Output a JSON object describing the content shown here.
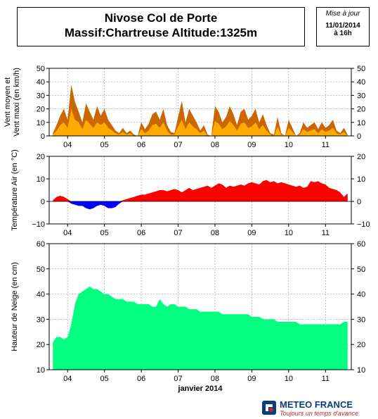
{
  "header": {
    "title_line1": "Nivose Col de Porte",
    "title_line2": "Massif:Chartreuse Altitude:1325m",
    "update_label": "Mise à jour",
    "update_date": "11/01/2014",
    "update_time": "à 16h"
  },
  "footer": {
    "brand": "METEO FRANCE",
    "slogan": "Toujours un temps d'avance",
    "xlabel": "janvier 2014"
  },
  "colors": {
    "wind_max": "#cc6600",
    "wind_mean": "#ffaa00",
    "temp_pos": "#ff0000",
    "temp_neg": "#0000ff",
    "snow": "#00ff80",
    "grid": "#999999"
  },
  "chart_data": [
    {
      "type": "area",
      "ylabel": "Vent moyen et Vent maxi (en km/h)",
      "ylim": [
        0,
        50
      ],
      "yticks": [
        0,
        10,
        20,
        30,
        40,
        50
      ],
      "xticks": [
        "04",
        "05",
        "06",
        "07",
        "08",
        "09",
        "10",
        "11"
      ],
      "x": [
        3.6,
        3.7,
        3.8,
        3.9,
        4.0,
        4.1,
        4.2,
        4.3,
        4.4,
        4.5,
        4.6,
        4.7,
        4.8,
        4.9,
        5.0,
        5.1,
        5.2,
        5.3,
        5.4,
        5.5,
        5.6,
        5.7,
        5.8,
        5.9,
        6.0,
        6.1,
        6.2,
        6.3,
        6.4,
        6.5,
        6.6,
        6.7,
        6.8,
        6.9,
        7.0,
        7.1,
        7.2,
        7.3,
        7.4,
        7.5,
        7.6,
        7.7,
        7.8,
        7.9,
        8.0,
        8.1,
        8.2,
        8.3,
        8.4,
        8.5,
        8.6,
        8.7,
        8.8,
        8.9,
        9.0,
        9.1,
        9.2,
        9.3,
        9.4,
        9.5,
        9.6,
        9.7,
        9.8,
        9.9,
        10.0,
        10.1,
        10.2,
        10.3,
        10.4,
        10.5,
        10.6,
        10.7,
        10.8,
        10.9,
        11.0,
        11.1,
        11.2,
        11.3,
        11.4,
        11.5,
        11.6
      ],
      "series": [
        {
          "name": "Vent maxi",
          "values": [
            2,
            8,
            15,
            20,
            12,
            38,
            25,
            18,
            10,
            24,
            18,
            12,
            22,
            15,
            20,
            12,
            8,
            4,
            2,
            6,
            2,
            4,
            1,
            0,
            10,
            5,
            9,
            16,
            18,
            12,
            20,
            8,
            3,
            2,
            14,
            26,
            10,
            20,
            15,
            10,
            4,
            8,
            1,
            0,
            22,
            18,
            10,
            14,
            22,
            16,
            8,
            18,
            20,
            12,
            15,
            20,
            10,
            16,
            8,
            2,
            1,
            14,
            2,
            0,
            12,
            6,
            0,
            2,
            10,
            6,
            8,
            10,
            5,
            10,
            6,
            8,
            12,
            4,
            2,
            6,
            1
          ]
        },
        {
          "name": "Vent moyen",
          "values": [
            1,
            4,
            8,
            10,
            6,
            20,
            12,
            10,
            5,
            12,
            9,
            6,
            10,
            8,
            10,
            6,
            4,
            2,
            1,
            3,
            1,
            2,
            0,
            0,
            5,
            2,
            4,
            8,
            9,
            6,
            10,
            4,
            1,
            1,
            7,
            12,
            5,
            10,
            7,
            5,
            2,
            4,
            0,
            0,
            11,
            9,
            5,
            7,
            11,
            8,
            4,
            9,
            10,
            6,
            7,
            10,
            5,
            8,
            4,
            1,
            0,
            7,
            1,
            0,
            6,
            3,
            0,
            1,
            5,
            3,
            4,
            5,
            2,
            5,
            3,
            4,
            6,
            2,
            1,
            3,
            0
          ]
        }
      ]
    },
    {
      "type": "area",
      "ylabel": "Température Air (en °C)",
      "ylim": [
        -10,
        20
      ],
      "yticks": [
        -10,
        0,
        10,
        20
      ],
      "xticks": [
        "04",
        "05",
        "06",
        "07",
        "08",
        "09",
        "10",
        "11"
      ],
      "x": [
        3.6,
        3.7,
        3.8,
        3.9,
        4.0,
        4.1,
        4.2,
        4.3,
        4.4,
        4.5,
        4.6,
        4.7,
        4.8,
        4.9,
        5.0,
        5.1,
        5.2,
        5.3,
        5.4,
        5.5,
        5.6,
        5.7,
        5.8,
        5.9,
        6.0,
        6.1,
        6.2,
        6.3,
        6.4,
        6.5,
        6.6,
        6.7,
        6.8,
        6.9,
        7.0,
        7.1,
        7.2,
        7.3,
        7.4,
        7.5,
        7.6,
        7.7,
        7.8,
        7.9,
        8.0,
        8.1,
        8.2,
        8.3,
        8.4,
        8.5,
        8.6,
        8.7,
        8.8,
        8.9,
        9.0,
        9.1,
        9.2,
        9.3,
        9.4,
        9.5,
        9.6,
        9.7,
        9.8,
        9.9,
        10.0,
        10.1,
        10.2,
        10.3,
        10.4,
        10.5,
        10.6,
        10.7,
        10.8,
        10.9,
        11.0,
        11.1,
        11.2,
        11.3,
        11.4,
        11.5,
        11.6
      ],
      "series": [
        {
          "name": "Température",
          "values": [
            0.5,
            2,
            2.5,
            2,
            1,
            -1,
            -1.5,
            -2,
            -2,
            -3,
            -3.5,
            -3,
            -2,
            -1.5,
            -2,
            -3,
            -3,
            -2.5,
            -1,
            0.5,
            1,
            1.5,
            2,
            2.5,
            3,
            3,
            3.5,
            4,
            4.5,
            5,
            5,
            4.5,
            5,
            5.5,
            5,
            4,
            5,
            6,
            5,
            5.5,
            6,
            6.5,
            7,
            6,
            7,
            8,
            7.5,
            6,
            7,
            6.5,
            7,
            7.5,
            7,
            8,
            8.5,
            8,
            7.5,
            9,
            9.5,
            8.5,
            9,
            8,
            8.5,
            8,
            7.5,
            7,
            6.5,
            7,
            6,
            6.5,
            9,
            8.5,
            9,
            8,
            7.5,
            6,
            5.5,
            5,
            4,
            2,
            3.5
          ]
        }
      ]
    },
    {
      "type": "area",
      "ylabel": "Hauteur de Neige (en cm)",
      "xlabel": "janvier 2014",
      "ylim": [
        10,
        60
      ],
      "yticks": [
        10,
        20,
        30,
        40,
        50,
        60
      ],
      "xticks": [
        "04",
        "05",
        "06",
        "07",
        "08",
        "09",
        "10",
        "11"
      ],
      "x": [
        3.6,
        3.7,
        3.8,
        3.9,
        4.0,
        4.1,
        4.2,
        4.3,
        4.4,
        4.5,
        4.6,
        4.7,
        4.8,
        4.9,
        5.0,
        5.1,
        5.2,
        5.3,
        5.4,
        5.5,
        5.6,
        5.7,
        5.8,
        5.9,
        6.0,
        6.1,
        6.2,
        6.3,
        6.4,
        6.5,
        6.6,
        6.7,
        6.8,
        6.9,
        7.0,
        7.1,
        7.2,
        7.3,
        7.4,
        7.5,
        7.6,
        7.7,
        7.8,
        7.9,
        8.0,
        8.1,
        8.2,
        8.3,
        8.4,
        8.5,
        8.6,
        8.7,
        8.8,
        8.9,
        9.0,
        9.1,
        9.2,
        9.3,
        9.4,
        9.5,
        9.6,
        9.7,
        9.8,
        9.9,
        10.0,
        10.1,
        10.2,
        10.3,
        10.4,
        10.5,
        10.6,
        10.7,
        10.8,
        10.9,
        11.0,
        11.1,
        11.2,
        11.3,
        11.4,
        11.5,
        11.6
      ],
      "series": [
        {
          "name": "Hauteur de neige",
          "values": [
            21,
            23,
            23,
            22,
            23,
            28,
            36,
            40,
            41,
            42,
            43,
            42,
            42,
            41,
            40,
            40,
            39,
            38,
            38,
            38,
            37,
            37,
            37,
            36,
            36,
            36,
            36,
            35,
            35,
            38,
            36,
            35,
            36,
            36,
            35,
            35,
            35,
            34,
            34,
            34,
            33,
            33,
            33,
            33,
            33,
            33,
            32,
            32,
            32,
            32,
            32,
            32,
            32,
            32,
            31,
            31,
            31,
            30,
            30,
            30,
            30,
            29,
            29,
            29,
            29,
            29,
            29,
            28,
            28,
            28,
            28,
            28,
            28,
            28,
            28,
            28,
            28,
            28,
            28,
            29,
            29
          ]
        }
      ]
    }
  ]
}
